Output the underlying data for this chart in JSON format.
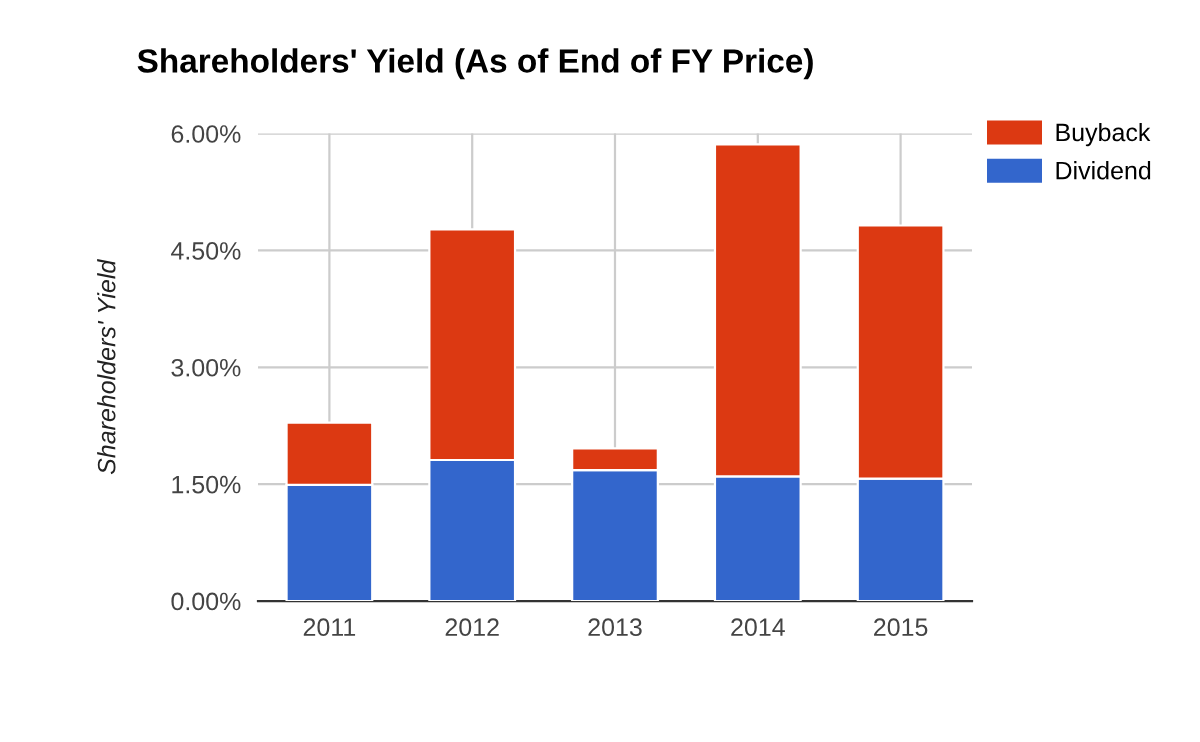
{
  "chart_data": {
    "type": "bar",
    "title": "Shareholders' Yield (As of End of FY Price)",
    "ylabel": "Shareholders' Yield",
    "categories": [
      "2011",
      "2012",
      "2013",
      "2014",
      "2015"
    ],
    "stacked": true,
    "series": [
      {
        "name": "Dividend",
        "color": "#3366cc",
        "values": [
          1.49,
          1.81,
          1.68,
          1.6,
          1.57
        ]
      },
      {
        "name": "Buyback",
        "color": "#dc3912",
        "values": [
          0.8,
          2.96,
          0.28,
          4.26,
          3.25
        ]
      }
    ],
    "ylim": [
      0,
      6
    ],
    "yticks": [
      {
        "value": 0,
        "label": "0.00%"
      },
      {
        "value": 1.5,
        "label": "1.50%"
      },
      {
        "value": 3,
        "label": "3.00%"
      },
      {
        "value": 4.5,
        "label": "4.50%"
      },
      {
        "value": 6,
        "label": "6.00%"
      }
    ],
    "grid": true,
    "legend": "top right"
  }
}
